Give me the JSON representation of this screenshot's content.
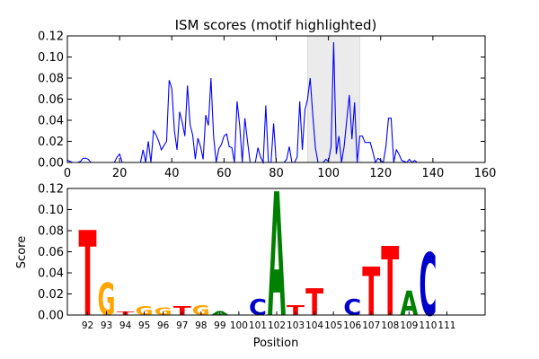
{
  "chart_data": [
    {
      "type": "line",
      "title": "ISM scores (motif highlighted)",
      "xlabel": "",
      "ylabel": "",
      "xlim": [
        0,
        160
      ],
      "ylim": [
        0,
        0.12
      ],
      "xticks": [
        "0",
        "20",
        "40",
        "60",
        "80",
        "100",
        "120",
        "140",
        "160"
      ],
      "yticks": [
        "0.00",
        "0.02",
        "0.04",
        "0.06",
        "0.08",
        "0.10",
        "0.12"
      ],
      "highlight_range": [
        92,
        112
      ],
      "colors": {
        "line": "#0000ff",
        "highlight": "#ebebeb"
      },
      "series": [
        {
          "x": [
            0,
            1,
            2,
            3,
            4,
            5,
            6,
            7,
            8,
            9,
            10,
            11,
            12,
            13,
            14,
            15,
            16,
            17,
            18,
            19,
            20,
            21,
            22,
            23,
            24,
            25,
            26,
            27,
            28,
            29,
            30,
            31,
            32,
            33,
            34,
            35,
            36,
            37,
            38,
            39,
            40,
            41,
            42,
            43,
            44,
            45,
            46,
            47,
            48,
            49,
            50,
            51,
            52,
            53,
            54,
            55,
            56,
            57,
            58,
            59,
            60,
            61,
            62,
            63,
            64,
            65,
            66,
            67,
            68,
            69,
            70,
            71,
            72,
            73,
            74,
            75,
            76,
            77,
            78,
            79,
            80,
            81,
            82,
            83,
            84,
            85,
            86,
            87,
            88,
            89,
            90,
            91,
            92,
            93,
            94,
            95,
            96,
            97,
            98,
            99,
            100,
            101,
            102,
            103,
            104,
            105,
            106,
            107,
            108,
            109,
            110,
            111,
            112,
            113,
            114,
            115,
            116,
            117,
            118,
            119,
            120,
            121,
            122,
            123,
            124,
            125,
            126,
            127,
            128,
            129,
            130,
            131,
            132,
            133,
            134,
            135,
            136,
            137,
            138,
            139,
            140,
            141,
            142,
            143,
            144,
            145
          ],
          "values": [
            0.002,
            0.001,
            0.0,
            0.0,
            0.0,
            0.001,
            0.004,
            0.004,
            0.003,
            0.0,
            0.0,
            0.0,
            0.0,
            0.0,
            0.0,
            0.0,
            0.0,
            0.0,
            0.0,
            0.005,
            0.008,
            0.0,
            0.0,
            0.0,
            0.0,
            0.0,
            0.0,
            0.0,
            0.0,
            0.012,
            0.0,
            0.02,
            0.0,
            0.03,
            0.026,
            0.02,
            0.012,
            0.016,
            0.02,
            0.078,
            0.07,
            0.03,
            0.012,
            0.048,
            0.038,
            0.025,
            0.073,
            0.036,
            0.026,
            0.003,
            0.023,
            0.015,
            0.003,
            0.045,
            0.035,
            0.08,
            0.025,
            0.0,
            0.013,
            0.017,
            0.025,
            0.027,
            0.015,
            0.014,
            0.0,
            0.058,
            0.035,
            0.0,
            0.042,
            0.02,
            0.0,
            0.0,
            0.0,
            0.014,
            0.005,
            0.0,
            0.054,
            0.0,
            0.0,
            0.037,
            0.0,
            0.0,
            0.0,
            0.0,
            0.003,
            0.015,
            0.0,
            0.0,
            0.005,
            0.058,
            0.012,
            0.05,
            0.06,
            0.08,
            0.045,
            0.014,
            0.0,
            0.0,
            0.0,
            0.003,
            0.001,
            0.015,
            0.114,
            0.008,
            0.025,
            0.0,
            0.015,
            0.04,
            0.064,
            0.022,
            0.057,
            0.0,
            0.025,
            0.025,
            0.019,
            0.019,
            0.019,
            0.01,
            0.0,
            0.004,
            0.002,
            0.0,
            0.015,
            0.042,
            0.042,
            0.0,
            0.012,
            0.008,
            0.002,
            0.001,
            0.0,
            0.003,
            0.0,
            0.002,
            0.0,
            0.0,
            0.0,
            0.0,
            0.0,
            0.0,
            0.0,
            0.0,
            0.0,
            0.0,
            0.0,
            0.0
          ]
        }
      ]
    },
    {
      "type": "bar",
      "subtype": "sequence-logo",
      "title": "",
      "xlabel": "Position",
      "ylabel": "Score",
      "ylim": [
        0,
        0.12
      ],
      "yticks": [
        "0.00",
        "0.02",
        "0.04",
        "0.06",
        "0.08",
        "0.10",
        "0.12"
      ],
      "categories": [
        "92",
        "93",
        "94",
        "95",
        "96",
        "97",
        "98",
        "99",
        "100",
        "101",
        "102",
        "103",
        "104",
        "105",
        "106",
        "107",
        "108",
        "109",
        "110",
        "111"
      ],
      "letters": [
        "T",
        "G",
        "T",
        "G",
        "G",
        "T",
        "G",
        "A",
        "",
        "C",
        "A",
        "T",
        "T",
        "",
        "C",
        "T",
        "T",
        "A",
        "C",
        ""
      ],
      "values": [
        0.079,
        0.03,
        0.003,
        0.008,
        0.007,
        0.008,
        0.009,
        0.004,
        0.0,
        0.015,
        0.115,
        0.009,
        0.025,
        0.0,
        0.015,
        0.045,
        0.064,
        0.023,
        0.058,
        0.0
      ],
      "colors": {
        "A": "#008000",
        "C": "#0000cc",
        "G": "#ffa500",
        "T": "#ff0000"
      }
    }
  ]
}
